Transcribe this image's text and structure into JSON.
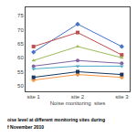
{
  "chart_data": {
    "type": "line",
    "xlabel": "Noise monitoring  sites",
    "annotations": [
      "oise level at different monitoring sites during",
      "f November 2010"
    ],
    "categories": [
      "site 1",
      "site 2",
      "site 3"
    ],
    "series": [
      {
        "values": [
          62,
          72,
          64
        ],
        "color": "#4472C4",
        "marker": "diamond"
      },
      {
        "values": [
          64,
          69,
          61
        ],
        "color": "#C0504D",
        "marker": "square"
      },
      {
        "values": [
          59,
          64,
          60
        ],
        "color": "#9BBB59",
        "marker": "triangle-up"
      },
      {
        "values": [
          57,
          59,
          58
        ],
        "color": "#8064A2",
        "marker": "circle"
      },
      {
        "values": [
          56,
          57,
          57
        ],
        "color": "#4BACC6",
        "marker": "triangle-down"
      },
      {
        "values": [
          52,
          54,
          53
        ],
        "color": "#F79646",
        "marker": "diamond"
      },
      {
        "values": [
          53,
          55,
          54
        ],
        "color": "#17375E",
        "marker": "square"
      }
    ],
    "ylim": [
      48,
      78
    ],
    "yticks": [
      50,
      55,
      60,
      65,
      70,
      75
    ],
    "grid": false
  }
}
